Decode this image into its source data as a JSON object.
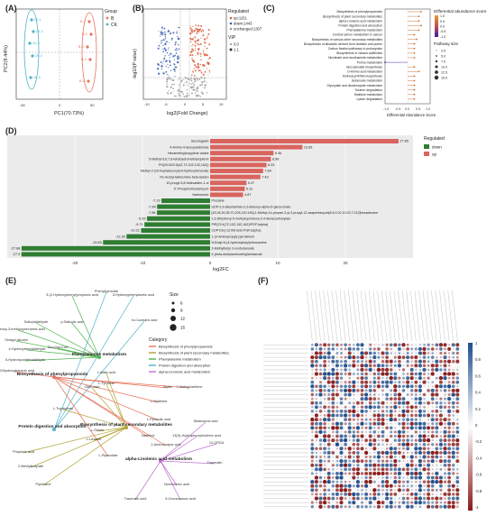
{
  "figure": {
    "panel_labels": [
      "(A)",
      "(B)",
      "(C)",
      "(D)",
      "(E)",
      "(F)"
    ]
  },
  "panel_a": {
    "title": "Group",
    "legend": [
      "B",
      "CK"
    ],
    "colors": {
      "B": "#e8735c",
      "CK": "#4fb3c6"
    },
    "xlabel": "PC1(70.73%)",
    "ylabel": "PC2(9.44%)",
    "ck_points": [
      "CK-1",
      "CK-2",
      "CK-3",
      "CK-4",
      "CK-5"
    ],
    "b_points": [
      "B-1",
      "B-2",
      "B-3",
      "B-4",
      "B-5"
    ]
  },
  "panel_b": {
    "xlabel": "log2(Fold Change)",
    "ylabel": "-log10(P value)",
    "legend_title": "Regulated",
    "regulated": [
      "up:1151",
      "down:1443",
      "unchanged:1307"
    ],
    "vip_title": "VIP",
    "vip": [
      "0.0",
      "1.1"
    ],
    "x_ticks": [
      "-10",
      "-5",
      "0",
      "5",
      "10"
    ],
    "y_ticks": [
      "0",
      "5",
      "10",
      "15"
    ],
    "colors": {
      "up": "#d95f3b",
      "down": "#3a5fb0",
      "unchanged": "#9a9a9a"
    }
  },
  "panel_c": {
    "xlabel": "Differential Abundance Score",
    "x_ticks": [
      "-1.0",
      "-0.5",
      "0.0",
      "0.5",
      "1.0"
    ],
    "legend1_title": "Differential abundance score",
    "legend1_ticks": [
      "1.0",
      "0.5",
      "0.0",
      "-0.5",
      "-1.0"
    ],
    "legend2_title": "Pathway size",
    "legend2_values": [
      "2.5",
      "5.0",
      "7.5",
      "10.0",
      "12.5",
      "15.0"
    ],
    "pathways": [
      "Biosynthesis of phenylpropanoids",
      "Biosynthesis of plant secondary metabolites",
      "alpha-Linolenic acid metabolism",
      "Protein digestion and absorption",
      "Phenylalanine metabolism",
      "Central carbon metabolism in cancer",
      "Biosynthesis of various other secondary metabolites",
      "Biosynthesis of alkaloids derived from histidine and purine",
      "Carbon fixation pathways in prokaryotes",
      "Biosynthesis of various antibiotics",
      "Nicotinate and nicotinamide metabolism",
      "Purine metabolism",
      "Glucosinolate biosynthesis",
      "D-Amino acid metabolism",
      "Aminoacyl-tRNA biosynthesis",
      "Butanoate metabolism",
      "Glyoxylate and dicarboxylate metabolism",
      "Toluene degradation",
      "Histidine metabolism",
      "Lysine degradation"
    ],
    "scores": [
      0.6,
      0.5,
      0.5,
      0.6,
      0.5,
      0.3,
      0.4,
      0.3,
      0.3,
      0.3,
      0.3,
      -1.0,
      0.3,
      0.5,
      0.3,
      0.3,
      0.3,
      0.3,
      0.3,
      0.3
    ]
  },
  "panel_d": {
    "xlabel": "log2FC",
    "legend_title": "Regulated",
    "legend": [
      "down",
      "up"
    ],
    "colors": {
      "up": "#d9645e",
      "down": "#2e7d32"
    },
    "x_ticks": [
      "-20",
      "-10",
      "0",
      "10",
      "20"
    ],
    "up": [
      {
        "name": "Secologanin",
        "value": 27.85,
        "label": "27.85"
      },
      {
        "name": "4-Amino-4-deoxyarabinose",
        "value": 13.65,
        "label": "13.65"
      },
      {
        "name": "Hexamethylpropylene amine",
        "value": 9.36,
        "label": "9.36"
      },
      {
        "name": "5-Methyl-5,6,7,8-tetrahydromethanopterin",
        "value": 8.98,
        "label": "8.98"
      },
      {
        "name": "PS(20:5/22:5(4Z,7Z,10Z,13Z,16Z))",
        "value": 8.33,
        "label": "8.33"
      },
      {
        "name": "Methyl 2-(10-heptadecenyl)-6-hydroxybenzoate",
        "value": 7.84,
        "label": "7.84"
      },
      {
        "name": "N1-Acetyl-tabtoxinine-beta-lactam",
        "value": 7.43,
        "label": "7.43"
      },
      {
        "name": "10-propyl-5,8-tridecadien-1-ol",
        "value": 5.37,
        "label": "5.37"
      },
      {
        "name": "5''-Phosphoribostamycin",
        "value": 5.12,
        "label": "5.12"
      },
      {
        "name": "Narbomicin",
        "value": 4.87,
        "label": "4.87"
      }
    ],
    "down": [
      {
        "name": "Procaine",
        "value": -7.19,
        "label": "-7.19"
      },
      {
        "name": "UDP-2,3-diacetamido-2,3-dideoxy-alpha-D-glucuronate",
        "value": -7.84,
        "label": "-7.84"
      },
      {
        "name": "[15,28,30,35,70,105,120,145]-1-Methyl-14-propan-2-yl-2-propyl-12-azapentacyclo[8.6.0.02,10.03,7.012]hexadecane",
        "value": -7.86,
        "label": "-7.86"
      },
      {
        "name": "1,6-Dihydroxy-5-methylcyclohexa-2,4-dienecarboxylate",
        "value": -9.33,
        "label": "-9.33"
      },
      {
        "name": "PIP(22:4(7Z,10Z,13Z,16Z)/PGF1alpha)",
        "value": -9.71,
        "label": "-9.71"
      },
      {
        "name": "CDP-DG(-12:0/6 keto-PGF1alpha)",
        "value": -10.21,
        "label": "-10.21"
      },
      {
        "name": "1-(3-Aminopropyl)-pyrrolinium",
        "value": -12.36,
        "label": "-12.36"
      },
      {
        "name": "N-Butyl-N-(4-hydroxybutyl)nitrosamine",
        "value": -15.83,
        "label": "-15.83"
      },
      {
        "name": "3-Methylbutyl 3-oxobutanoate",
        "value": -27.88,
        "label": "-27.88"
      },
      {
        "name": "4-(beta-Acetylaminoethyl)imidazole",
        "value": -27.9,
        "label": "-27.9"
      }
    ]
  },
  "panel_e": {
    "size_title": "Size",
    "size_values": [
      "6",
      "9",
      "12",
      "15"
    ],
    "category_title": "Category",
    "categories": [
      {
        "name": "Biosynthesis of phenylpropanoids",
        "color": "#e8735c"
      },
      {
        "name": "Biosynthesis of plant secondary metabolites",
        "color": "#b0a030"
      },
      {
        "name": "Phenylalanine metabolism",
        "color": "#4fb34f"
      },
      {
        "name": "Protein digestion and absorption",
        "color": "#4fb3c6"
      },
      {
        "name": "alpha-Linolenic acid metabolism",
        "color": "#c070d0"
      }
    ],
    "hubs": [
      {
        "name": "Phenylalanine metabolism"
      },
      {
        "name": "Biosynthesis of phenylpropanoids"
      },
      {
        "name": "Protein digestion and absorption"
      },
      {
        "name": "Biosynthesis of plant secondary metabolites"
      },
      {
        "name": "alpha-Linolenic acid metabolism"
      }
    ],
    "nodes": [
      "3-(2-Hydroxyphenyl)propionic acid",
      "Phenylpyruvate",
      "3-Hydroxyphenylacetic acid",
      "m-Coumaric acid",
      "Salicylaldehyde",
      "p-Salicylic acid",
      "4-Hydroxy-3-methoxycinnamic acid",
      "Sinapyl alcohol",
      "4-Hydroxybenzaldehyde",
      "Succinyl-CoA",
      "5-Hydroxyconiferaldehyde",
      "2,3-Dihydroxybenzoic acid",
      "L-Malic acid",
      "L-Tyrosine",
      "Citric acid",
      "Zeatin",
      "7-Methylxanthine",
      "L-Ornithine",
      "Propionic acid",
      "L-Tryptophan",
      "L-Serine",
      "L-Leucine",
      "2-Methylbutyrate",
      "Piperidine",
      "L-Pipecolic acid",
      "Xanthine",
      "L-Pipecolate",
      "2-Aminobutyric acid",
      "Stearidonic acid",
      "13(S)-Hydroperoxylinolenic acid",
      "12-OPDA",
      "Traumatin",
      "Norlinolenic acid",
      "Traumatic acid",
      "9-Oxononanoic acid"
    ]
  },
  "panel_f": {
    "scale_ticks": [
      "1",
      "0.8",
      "0.6",
      "0.4",
      "0.2",
      "0",
      "-0.2",
      "-0.4",
      "-0.6",
      "-0.8",
      "-1"
    ]
  }
}
